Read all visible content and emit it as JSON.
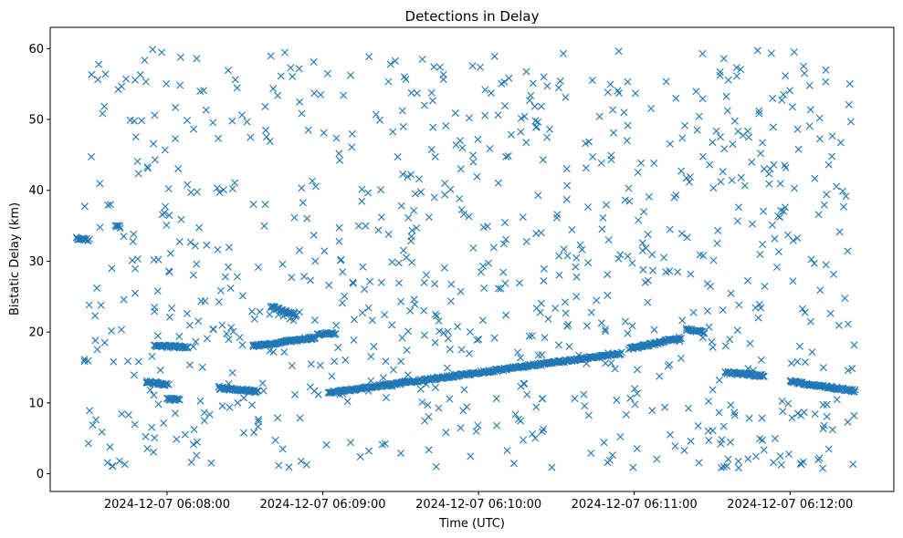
{
  "chart_data": {
    "type": "scatter",
    "title": "Detections in Delay",
    "xlabel": "Time (UTC)",
    "ylabel": "Bistatic Delay (km)",
    "marker": "x",
    "color": "#1f77b4",
    "grid": false,
    "xlim": [
      "2024-12-07 06:07:15",
      "2024-12-07 06:12:40"
    ],
    "ylim": [
      -2.5,
      63
    ],
    "xticks": [
      "2024-12-07 06:08:00",
      "2024-12-07 06:09:00",
      "2024-12-07 06:10:00",
      "2024-12-07 06:11:00",
      "2024-12-07 06:12:00"
    ],
    "yticks": [
      "0",
      "10",
      "20",
      "30",
      "40",
      "50",
      "60"
    ],
    "tracks": [
      {
        "start": "2024-12-07 06:07:25",
        "end": "2024-12-07 06:07:30",
        "delay_start": 33.2,
        "delay_end": 33.0
      },
      {
        "start": "2024-12-07 06:07:40",
        "end": "2024-12-07 06:07:42",
        "delay_start": 35.0,
        "delay_end": 34.8
      },
      {
        "start": "2024-12-07 06:07:52",
        "end": "2024-12-07 06:08:00",
        "delay_start": 13.0,
        "delay_end": 12.6
      },
      {
        "start": "2024-12-07 06:07:55",
        "end": "2024-12-07 06:08:08",
        "delay_start": 18.0,
        "delay_end": 17.9
      },
      {
        "start": "2024-12-07 06:08:00",
        "end": "2024-12-07 06:08:05",
        "delay_start": 10.5,
        "delay_end": 10.5
      },
      {
        "start": "2024-12-07 06:08:20",
        "end": "2024-12-07 06:08:35",
        "delay_start": 12.1,
        "delay_end": 11.6
      },
      {
        "start": "2024-12-07 06:08:33",
        "end": "2024-12-07 06:08:57",
        "delay_start": 18.0,
        "delay_end": 19.2
      },
      {
        "start": "2024-12-07 06:08:40",
        "end": "2024-12-07 06:08:50",
        "delay_start": 23.6,
        "delay_end": 22.3
      },
      {
        "start": "2024-12-07 06:08:58",
        "end": "2024-12-07 06:09:05",
        "delay_start": 19.7,
        "delay_end": 19.8
      },
      {
        "start": "2024-12-07 06:09:02",
        "end": "2024-12-07 06:10:55",
        "delay_start": 11.4,
        "delay_end": 17.0
      },
      {
        "start": "2024-12-07 06:10:58",
        "end": "2024-12-07 06:11:18",
        "delay_start": 17.6,
        "delay_end": 19.2
      },
      {
        "start": "2024-12-07 06:11:20",
        "end": "2024-12-07 06:11:27",
        "delay_start": 20.5,
        "delay_end": 19.9
      },
      {
        "start": "2024-12-07 06:11:35",
        "end": "2024-12-07 06:11:50",
        "delay_start": 14.3,
        "delay_end": 13.8
      },
      {
        "start": "2024-12-07 06:12:00",
        "end": "2024-12-07 06:12:25",
        "delay_start": 13.0,
        "delay_end": 11.7
      }
    ],
    "noise": {
      "count": 900,
      "time_from": "2024-12-07 06:07:27",
      "time_to": "2024-12-07 06:12:25",
      "delay_from": 0.7,
      "delay_to": 60
    }
  }
}
